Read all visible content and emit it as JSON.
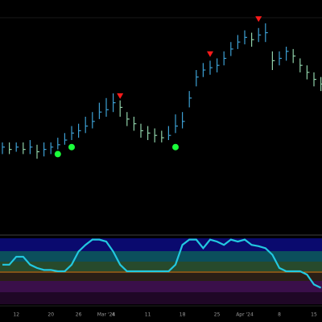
{
  "chart_data": {
    "type": "ohlc",
    "categories": [
      null,
      null,
      "12",
      null,
      null,
      null,
      null,
      "20",
      null,
      null,
      null,
      "26",
      null,
      null,
      null,
      "Mar '24",
      "4",
      null,
      null,
      null,
      null,
      "11",
      null,
      null,
      null,
      null,
      "18",
      null,
      null,
      null,
      null,
      "25",
      null,
      null,
      null,
      "Apr '24",
      null,
      null,
      null,
      null,
      "8",
      null,
      null,
      null,
      null,
      "15",
      null
    ],
    "close": [
      37,
      36,
      37,
      36,
      37,
      35,
      36,
      37,
      38,
      40,
      43,
      44,
      46,
      48,
      52,
      53,
      56,
      54,
      49,
      47,
      44,
      43,
      42,
      41,
      42,
      46,
      48,
      58,
      67,
      70,
      71,
      72,
      75,
      79,
      82,
      84,
      83,
      85,
      86,
      74,
      75,
      78,
      76,
      72,
      69,
      66,
      64
    ],
    "high": [
      39,
      39,
      39,
      39,
      40,
      38,
      39,
      39,
      41,
      43,
      46,
      47,
      50,
      52,
      56,
      58,
      60,
      57,
      52,
      50,
      47,
      46,
      45,
      44,
      46,
      51,
      52,
      61,
      70,
      73,
      74,
      75,
      78,
      82,
      85,
      87,
      86,
      88,
      90,
      78,
      78,
      80,
      79,
      75,
      72,
      69,
      67
    ],
    "low": [
      34,
      34,
      35,
      34,
      34,
      32,
      33,
      34,
      36,
      38,
      40,
      41,
      43,
      45,
      49,
      50,
      52,
      50,
      46,
      44,
      41,
      40,
      39,
      39,
      40,
      43,
      45,
      54,
      63,
      67,
      68,
      69,
      72,
      76,
      79,
      81,
      80,
      82,
      82,
      70,
      72,
      74,
      73,
      69,
      66,
      63,
      61
    ],
    "up_color": "#3d9fd3",
    "down_color": "#8fd0a8",
    "ylim": [
      0,
      100
    ],
    "sell_signals": {
      "index": [
        17,
        30,
        37
      ],
      "values": [
        59,
        77,
        92
      ],
      "color": "#ff1a1a"
    },
    "buy_signals": {
      "index": [
        8,
        10,
        25
      ],
      "values": [
        34,
        37,
        37
      ],
      "color": "#1aff3a"
    },
    "oscillator": {
      "values": [
        60,
        60,
        72,
        72,
        60,
        55,
        52,
        52,
        50,
        50,
        60,
        80,
        90,
        98,
        98,
        95,
        80,
        60,
        50,
        50,
        50,
        50,
        50,
        50,
        50,
        60,
        90,
        98,
        98,
        85,
        98,
        95,
        90,
        98,
        95,
        98,
        90,
        88,
        85,
        75,
        55,
        50,
        50,
        50,
        45,
        30,
        25
      ],
      "color": "#22c8e0",
      "ylim": [
        0,
        100
      ]
    }
  }
}
